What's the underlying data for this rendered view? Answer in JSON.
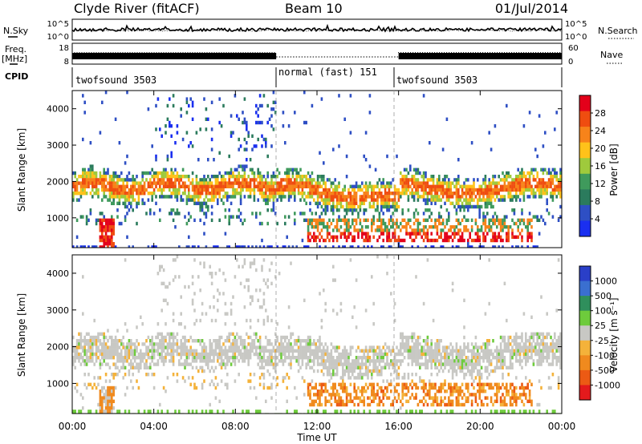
{
  "header": {
    "station": "Clyde River (fitACF)",
    "beam": "Beam 10",
    "date": "01/Jul/2014"
  },
  "noise_panel": {
    "left_label": "N.Sky",
    "right_label": "N.Search",
    "left_ticks": [
      "10^5",
      "10^0"
    ],
    "right_ticks": [
      "10^5",
      "10^0"
    ]
  },
  "freq_panel": {
    "left_label_1": "Freq.",
    "left_label_2": "[MHz]",
    "right_label": "Nave",
    "left_ticks": [
      "18",
      "8"
    ],
    "right_ticks": [
      "60",
      "0"
    ]
  },
  "cpid": {
    "label": "CPID",
    "segments": [
      {
        "name": "twofsound 3503",
        "start_hr": 0,
        "end_hr": 10
      },
      {
        "name": "normal (fast) 151",
        "start_hr": 10,
        "end_hr": 16
      },
      {
        "name": "twofsound 3503",
        "start_hr": 16,
        "end_hr": 24
      }
    ]
  },
  "power_colorbar": {
    "label": "Power [dB]",
    "ticks": [
      "28",
      "24",
      "20",
      "16",
      "12",
      "8",
      "4"
    ],
    "colors": [
      "#e3001a",
      "#ef4d10",
      "#f7831a",
      "#ffc21a",
      "#9fca3c",
      "#3f9a5c",
      "#2b7b5d",
      "#2e4fc4",
      "#1a2ff0"
    ]
  },
  "velocity_colorbar": {
    "label": "Velocity [m s⁻¹]",
    "ticks": [
      "1000",
      "500",
      "100",
      "25",
      "-25",
      "-100",
      "-500",
      "-1000"
    ],
    "colors": [
      "#2a3fc8",
      "#3a6fd0",
      "#2f8f5c",
      "#6ecb3c",
      "#c8c8c4",
      "#f4b23a",
      "#f08a1e",
      "#ec5a14",
      "#e31a1c"
    ]
  },
  "x_axis": {
    "label": "Time UT",
    "ticks": [
      "00:00",
      "04:00",
      "08:00",
      "12:00",
      "16:00",
      "20:00",
      "00:00"
    ]
  },
  "chart_data": [
    {
      "type": "heatmap",
      "title": "Power",
      "ylabel": "Slant Range [km]",
      "xlabel": "",
      "xlim": [
        0,
        24
      ],
      "ylim": [
        180,
        4500
      ],
      "y_ticks": [
        1000,
        2000,
        3000,
        4000
      ],
      "colorbar_label": "Power [dB]",
      "bands": [
        {
          "x0": 0,
          "x1": 10,
          "y0": 1450,
          "y1": 2350,
          "level": "green-orange"
        },
        {
          "x0": 10,
          "x1": 16,
          "y0": 1350,
          "y1": 2100,
          "level": "green-orange"
        },
        {
          "x0": 16,
          "x1": 24,
          "y0": 1300,
          "y1": 2300,
          "level": "green-orange"
        },
        {
          "x0": 12,
          "x1": 22,
          "y0": 400,
          "y1": 1000,
          "level": "orange-red"
        },
        {
          "x0": 1.3,
          "x1": 2.0,
          "y0": 200,
          "y1": 1000,
          "level": "red"
        }
      ],
      "vertical_markers_hr": [
        10,
        16
      ]
    },
    {
      "type": "heatmap",
      "title": "Velocity",
      "ylabel": "Slant Range [km]",
      "xlabel": "Time UT",
      "xlim": [
        0,
        24
      ],
      "ylim": [
        180,
        4500
      ],
      "y_ticks": [
        1000,
        2000,
        3000,
        4000
      ],
      "colorbar_label": "Velocity [m s⁻¹]",
      "bands": [
        {
          "x0": 0,
          "x1": 24,
          "y0": 1300,
          "y1": 2400,
          "level": "grey (-25 to 25)"
        },
        {
          "x0": 12,
          "x1": 22,
          "y0": 400,
          "y1": 1000,
          "level": "orange (-100 to -500)"
        },
        {
          "x0": 0,
          "x1": 2,
          "y0": 1500,
          "y1": 2300,
          "level": "orange"
        }
      ],
      "vertical_markers_hr": [
        10,
        16
      ]
    }
  ]
}
